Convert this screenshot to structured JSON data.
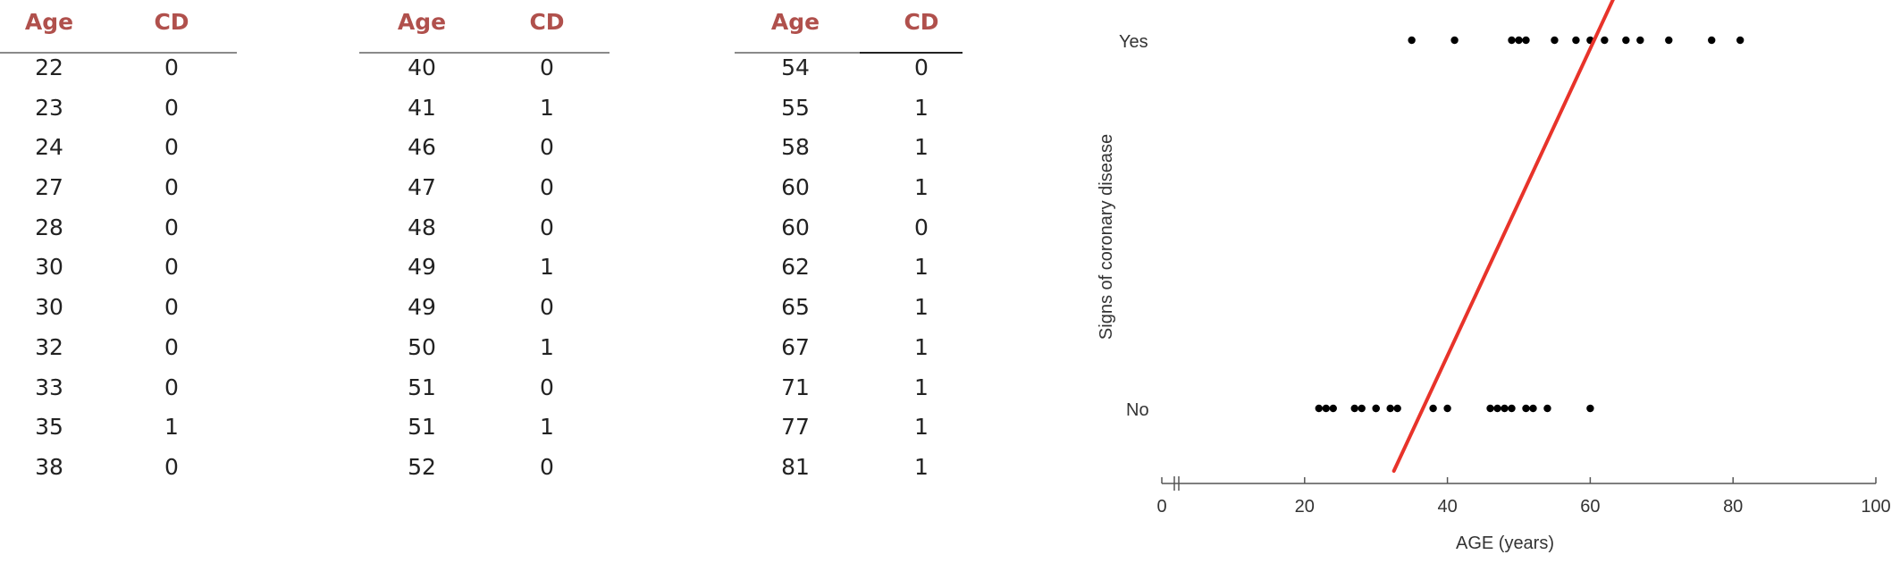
{
  "tables": [
    {
      "headers": [
        "Age",
        "CD"
      ],
      "rows": [
        [
          "22",
          "0"
        ],
        [
          "23",
          "0"
        ],
        [
          "24",
          "0"
        ],
        [
          "27",
          "0"
        ],
        [
          "28",
          "0"
        ],
        [
          "30",
          "0"
        ],
        [
          "30",
          "0"
        ],
        [
          "32",
          "0"
        ],
        [
          "33",
          "0"
        ],
        [
          "35",
          "1"
        ],
        [
          "38",
          "0"
        ]
      ]
    },
    {
      "headers": [
        "Age",
        "CD"
      ],
      "rows": [
        [
          "40",
          "0"
        ],
        [
          "41",
          "1"
        ],
        [
          "46",
          "0"
        ],
        [
          "47",
          "0"
        ],
        [
          "48",
          "0"
        ],
        [
          "49",
          "1"
        ],
        [
          "49",
          "0"
        ],
        [
          "50",
          "1"
        ],
        [
          "51",
          "0"
        ],
        [
          "51",
          "1"
        ],
        [
          "52",
          "0"
        ]
      ]
    },
    {
      "headers": [
        "Age",
        "CD"
      ],
      "rows": [
        [
          "54",
          "0"
        ],
        [
          "55",
          "1"
        ],
        [
          "58",
          "1"
        ],
        [
          "60",
          "1"
        ],
        [
          "60",
          "0"
        ],
        [
          "62",
          "1"
        ],
        [
          "65",
          "1"
        ],
        [
          "67",
          "1"
        ],
        [
          "71",
          "1"
        ],
        [
          "77",
          "1"
        ],
        [
          "81",
          "1"
        ]
      ]
    }
  ],
  "colors": {
    "header_text": "#b0504c",
    "fit_line": "#e8332a",
    "points": "#000000"
  },
  "chart_data": {
    "type": "scatter",
    "xlabel": "AGE (years)",
    "ylabel": "Signs of coronary disease",
    "xlim": [
      0,
      100
    ],
    "xticks": [
      0,
      20,
      40,
      60,
      80,
      100
    ],
    "y_categories": [
      "No",
      "Yes"
    ],
    "axis_break": true,
    "grid": false,
    "series": [
      {
        "y": "No",
        "x": [
          22,
          23,
          24,
          27,
          28,
          30,
          30,
          32,
          33,
          38,
          40,
          46,
          47,
          48,
          49,
          51,
          52,
          54,
          60
        ]
      },
      {
        "y": "Yes",
        "x": [
          35,
          41,
          49,
          50,
          51,
          55,
          58,
          60,
          62,
          65,
          67,
          71,
          77,
          81
        ]
      }
    ],
    "fit_line": {
      "x": [
        32.5,
        63.4
      ],
      "y_start": "below No",
      "y_end": "above Yes"
    }
  }
}
